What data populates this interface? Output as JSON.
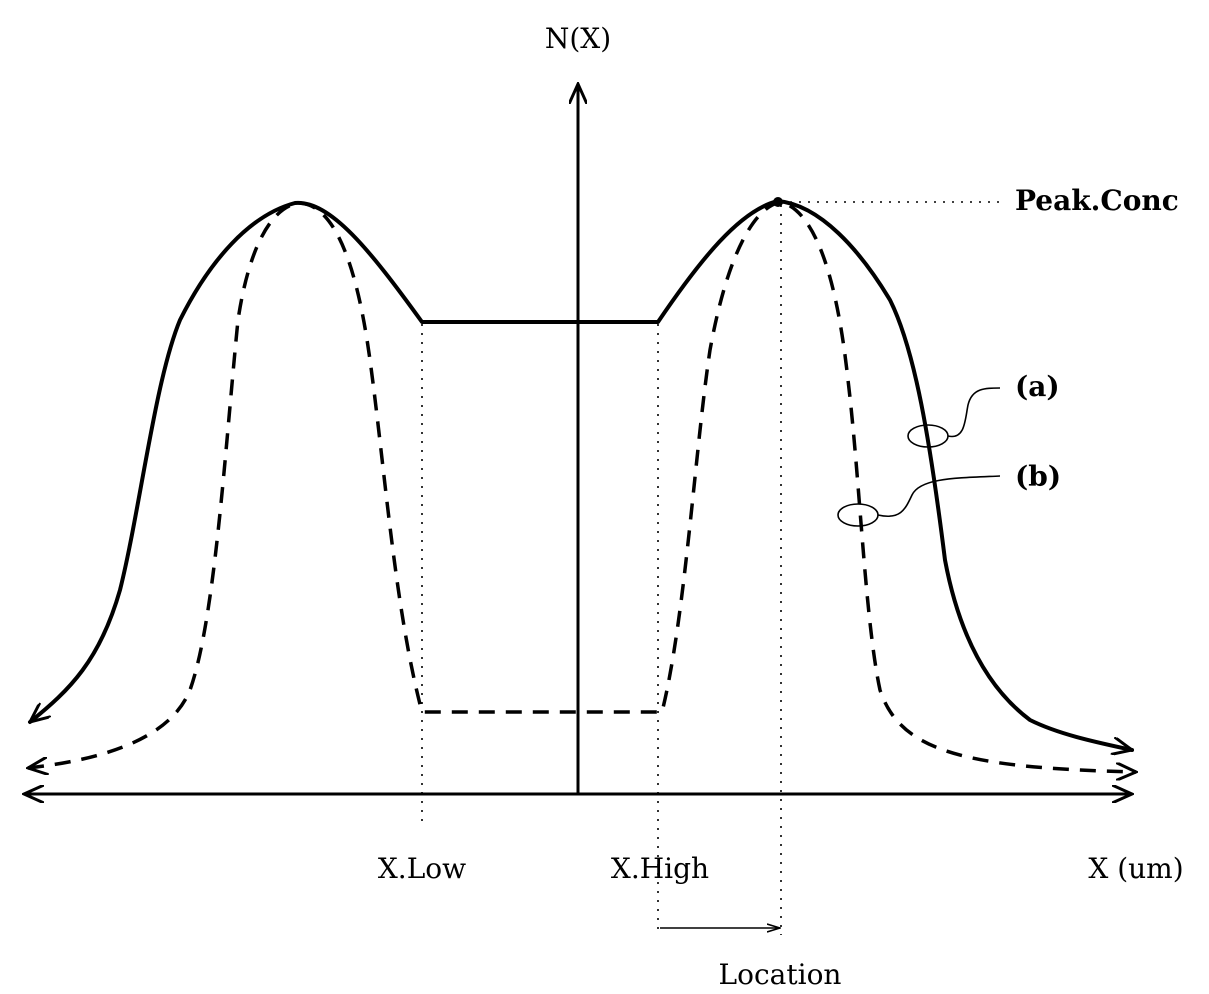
{
  "labels": {
    "y_axis": "N(X)",
    "x_axis": "X (um)",
    "peak": "Peak.Conc",
    "x_low": "X.Low",
    "x_high": "X.High",
    "location": "Location",
    "curve_a": "(a)",
    "curve_b": "(b)"
  }
}
